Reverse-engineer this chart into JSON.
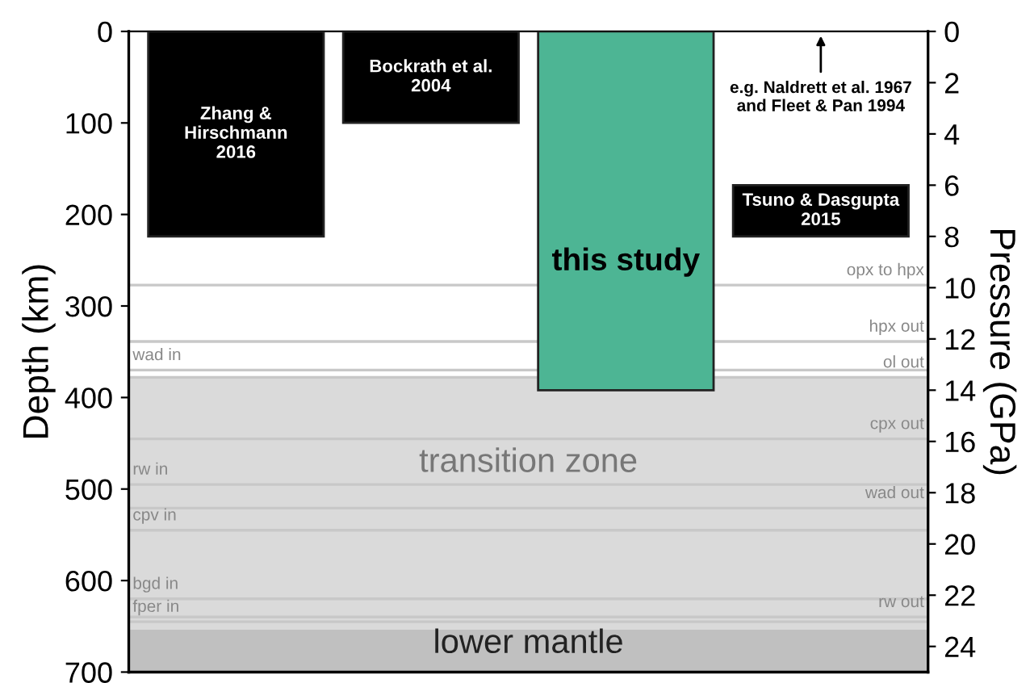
{
  "chart_data": {
    "type": "bar",
    "ylabel": "Depth (km)",
    "y2label": "Pressure (GPa)",
    "categories": [
      null,
      null,
      null,
      null
    ],
    "series": [
      {
        "name": "Zhang &\nHirschmann\n2016",
        "color": "#000000",
        "axis": "y2",
        "values": [
          8,
          null,
          null,
          null
        ],
        "base": [
          0,
          null,
          null,
          null
        ]
      },
      {
        "name": "Bockrath et al.\n2004",
        "color": "#000000",
        "axis": "y2",
        "values": [
          null,
          3.57,
          null,
          null
        ],
        "base": [
          null,
          0,
          null,
          null
        ]
      },
      {
        "name": "this study",
        "color": "#4db594",
        "axis": "y2",
        "values": [
          null,
          null,
          14,
          null
        ],
        "base": [
          null,
          null,
          0,
          null
        ]
      },
      {
        "name": "Tsuno & Dasgupta\n2015",
        "color": "#000000",
        "axis": "y2",
        "values": [
          null,
          null,
          null,
          2
        ],
        "base": [
          null,
          null,
          null,
          6
        ]
      }
    ],
    "annotations": [
      "e.g. Naldrett et al. 1967\nand Fleet & Pan 1994"
    ],
    "ylim": [
      700,
      0
    ],
    "yticks": [
      0,
      100,
      200,
      300,
      400,
      500,
      600,
      700
    ],
    "y2lim": [
      25,
      0
    ],
    "y2ticks": [
      0,
      2,
      4,
      6,
      8,
      10,
      12,
      14,
      16,
      18,
      20,
      22,
      24
    ],
    "bands": [
      {
        "axis": "y2",
        "from": 13.5,
        "to": 23.35,
        "label": "transition zone",
        "color": "#dadada"
      },
      {
        "axis": "y2",
        "from": 23.35,
        "to": 25,
        "label": "lower mantle",
        "color": "#c0c0c0"
      }
    ],
    "ref_lines": [
      {
        "axis": "y2",
        "value": 9.9,
        "label": "opx to hpx",
        "color": "#c8c8c8"
      },
      {
        "axis": "y2",
        "value": 12.1,
        "label": "hpx out",
        "color": "#c8c8c8"
      },
      {
        "axis": "y",
        "value": 370,
        "label": "wad in",
        "color": "#c8c8c8"
      },
      {
        "axis": "y2",
        "value": 13.5,
        "label": "ol out",
        "color": "#c8c8c8"
      },
      {
        "axis": "y2",
        "value": 15.9,
        "label": "cpx out",
        "color": "#c8c8c8"
      },
      {
        "axis": "y",
        "value": 495,
        "label": "rw in",
        "color": "#c8c8c8"
      },
      {
        "axis": "y2",
        "value": 18.6,
        "label": "wad out",
        "color": "#c8c8c8"
      },
      {
        "axis": "y",
        "value": 545,
        "label": "cpv in",
        "color": "#c8c8c8"
      },
      {
        "axis": "y",
        "value": 620,
        "label": "bgd in",
        "color": "#c8c8c8"
      },
      {
        "axis": "y2",
        "value": 22.85,
        "label": "rw out",
        "color": "#c8c8c8"
      },
      {
        "axis": "y",
        "value": 645,
        "label": "fper in",
        "color": "#c8c8c8"
      }
    ],
    "grid": false,
    "legend": false
  }
}
